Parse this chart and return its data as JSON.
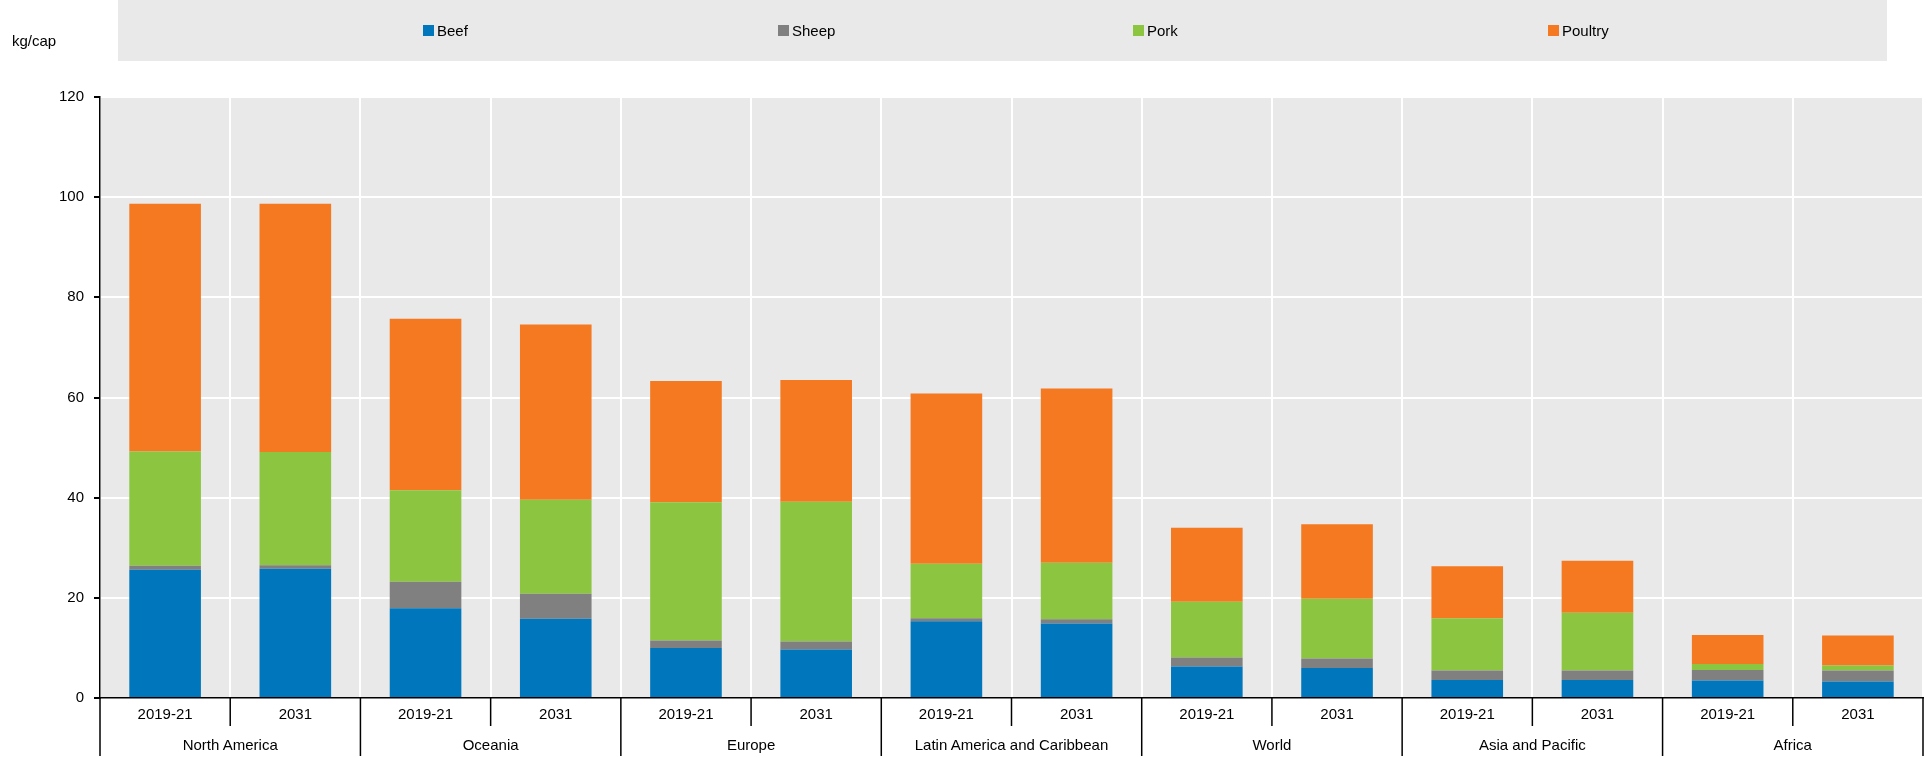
{
  "chart_data": {
    "type": "bar",
    "stacked": true,
    "ylabel": "kg/cap",
    "legend": "top",
    "grid": true,
    "categories": [
      "2019-21",
      "2031",
      "2019-21",
      "2031",
      "2019-21",
      "2031",
      "2019-21",
      "2031",
      "2019-21",
      "2031",
      "2019-21",
      "2031",
      "2019-21",
      "2031"
    ],
    "annotations": [
      "North America",
      "Oceania",
      "Europe",
      "Latin America and Caribbean",
      "World",
      "Asia and Pacific",
      "Africa"
    ],
    "ylim": [
      0,
      120
    ],
    "yticks": [
      0,
      20,
      40,
      60,
      80,
      100,
      120
    ],
    "series": [
      {
        "name": "Beef",
        "color": "#0077bd",
        "values": [
          25.6,
          25.8,
          17.9,
          15.8,
          10.0,
          9.7,
          15.3,
          14.9,
          6.3,
          6.0,
          3.6,
          3.6,
          3.5,
          3.3
        ]
      },
      {
        "name": "Sheep",
        "color": "#808080",
        "values": [
          0.8,
          0.7,
          5.3,
          5.0,
          1.5,
          1.6,
          0.6,
          0.8,
          1.8,
          1.9,
          1.9,
          1.9,
          2.1,
          2.2
        ]
      },
      {
        "name": "Pork",
        "color": "#8cc641",
        "values": [
          22.8,
          22.6,
          18.3,
          18.8,
          27.6,
          27.9,
          10.9,
          11.3,
          11.1,
          11.9,
          10.4,
          11.5,
          1.2,
          1.0
        ]
      },
      {
        "name": "Poultry",
        "color": "#f47920",
        "values": [
          49.5,
          49.6,
          34.2,
          35.0,
          24.2,
          24.3,
          34.0,
          34.8,
          14.8,
          14.9,
          10.4,
          10.4,
          5.8,
          6.0
        ]
      }
    ]
  }
}
